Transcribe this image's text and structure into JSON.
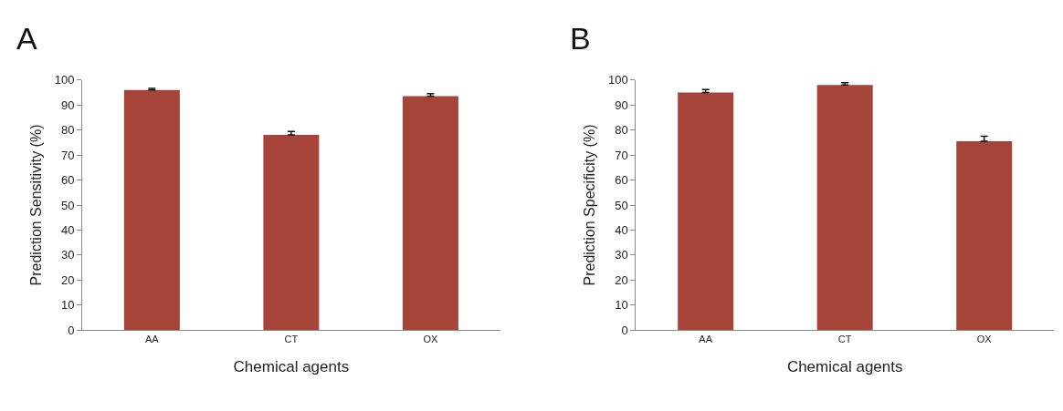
{
  "chart_data": [
    {
      "type": "bar",
      "title": "A",
      "xlabel": "Chemical agents",
      "ylabel": "Prediction Sensitivity (%)",
      "categories": [
        "AA",
        "CT",
        "OX"
      ],
      "values": [
        96,
        78,
        93.5
      ],
      "errors": [
        [
          96,
          96.6
        ],
        [
          78,
          79.4
        ],
        [
          93.5,
          94.5
        ]
      ],
      "color": "#a6443a",
      "ylim": [
        0,
        100
      ],
      "yticks": [
        0,
        10,
        20,
        30,
        40,
        50,
        60,
        70,
        80,
        90,
        100
      ]
    },
    {
      "type": "bar",
      "title": "B",
      "xlabel": "Chemical agents",
      "ylabel": "Prediction Specificity (%)",
      "categories": [
        "AA",
        "CT",
        "OX"
      ],
      "values": [
        95,
        98,
        75.5
      ],
      "errors": [
        [
          95,
          96.2
        ],
        [
          98,
          98.9
        ],
        [
          75.5,
          77.5
        ]
      ],
      "color": "#a6443a",
      "ylim": [
        0,
        100
      ],
      "yticks": [
        0,
        10,
        20,
        30,
        40,
        50,
        60,
        70,
        80,
        90,
        100
      ]
    }
  ]
}
